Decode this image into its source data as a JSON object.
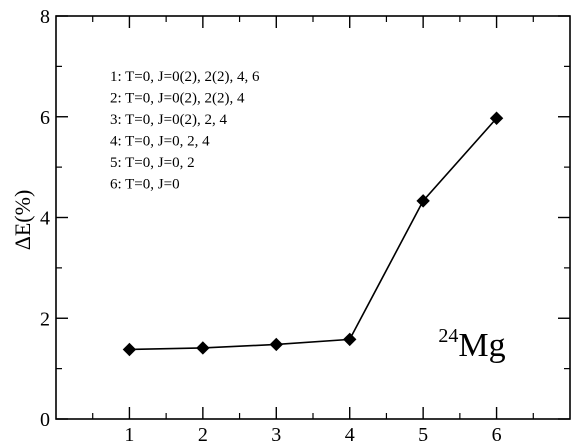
{
  "chart_data": {
    "type": "line",
    "title": "",
    "xlabel": "",
    "ylabel": "ΔE(%)",
    "xlim": [
      0,
      7
    ],
    "ylim": [
      0,
      8
    ],
    "grid": false,
    "x_ticks": [
      1,
      2,
      3,
      4,
      5,
      6
    ],
    "y_ticks": [
      0,
      2,
      4,
      6,
      8
    ],
    "y_minor_ticks": [
      1,
      3,
      5,
      7
    ],
    "x_minor_ticks": [
      0.5,
      1.5,
      2.5,
      3.5,
      4.5,
      5.5,
      6.5
    ],
    "series": [
      {
        "x": [
          1,
          2,
          3,
          4,
          5,
          6
        ],
        "values": [
          1.38,
          1.41,
          1.48,
          1.58,
          4.33,
          5.97
        ],
        "marker": "diamond",
        "color": "#000000"
      }
    ],
    "legend_lines": [
      "1:  T=0, J=0(2), 2(2), 4, 6",
      "2:  T=0, J=0(2), 2(2), 4",
      "3:  T=0, J=0(2), 2, 4",
      "4:  T=0, J=0, 2, 4",
      "5:  T=0, J=0, 2",
      "6:  T=0, J=0"
    ],
    "legend_position": "top-left",
    "annotation": {
      "sup": "24",
      "main": "Mg",
      "position": "bottom-right"
    }
  }
}
